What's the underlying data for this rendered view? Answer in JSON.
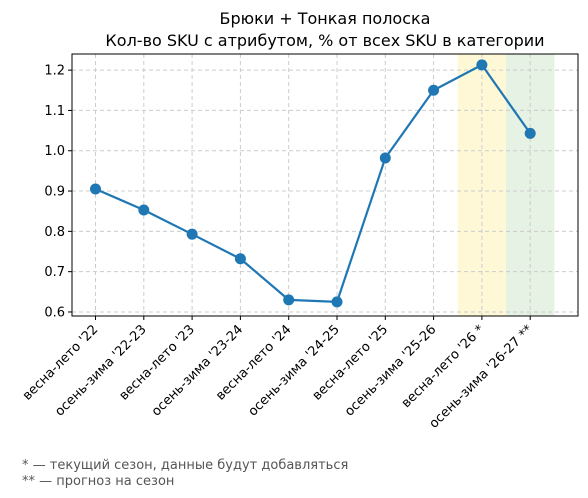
{
  "chart_data": {
    "type": "line",
    "title": "Брюки + Тонкая полоска",
    "subtitle": "Кол-во SKU с атрибутом, % от всех SKU в категории",
    "xlabel": "",
    "ylabel": "",
    "categories": [
      "весна-лето '22",
      "осень-зима '22-23",
      "весна-лето '23",
      "осень-зима '23-24",
      "весна-лето '24",
      "осень-зима '24-25",
      "весна-лето '25",
      "осень-зима '25-26",
      "весна-лето '26 *",
      "осень-зима '26-27 **"
    ],
    "series": [
      {
        "values": [
          0.905,
          0.853,
          0.793,
          0.732,
          0.63,
          0.625,
          0.982,
          1.15,
          1.213,
          1.043
        ]
      }
    ],
    "ylim": [
      0.59,
      1.24
    ],
    "yticks": [
      0.6,
      0.7,
      0.8,
      0.9,
      1.0,
      1.1,
      1.2
    ],
    "ytick_labels": [
      "0.6",
      "0.7",
      "0.8",
      "0.9",
      "1.0",
      "1.1",
      "1.2"
    ],
    "grid": true,
    "highlight_bands": [
      {
        "category_index": 8,
        "color": "#fff8d6"
      },
      {
        "category_index": 9,
        "color": "#e6f2e3"
      }
    ],
    "line_color": "#1f77b4",
    "footnotes": [
      "* — текущий сезон, данные будут добавляться",
      "** — прогноз на сезон"
    ]
  }
}
